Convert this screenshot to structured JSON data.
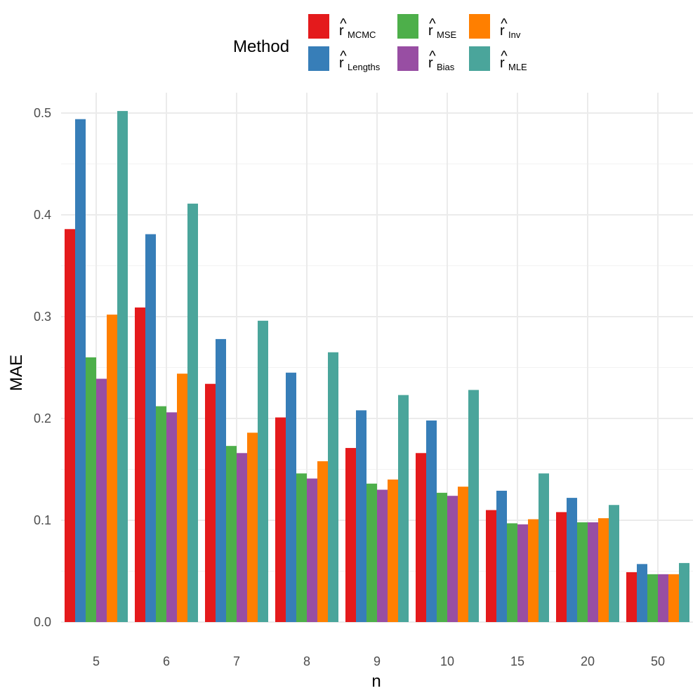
{
  "chart_data": {
    "type": "bar",
    "xlabel": "n",
    "ylabel": "MAE",
    "ylim": [
      0,
      0.52
    ],
    "yticks": [
      0.0,
      0.1,
      0.2,
      0.3,
      0.4,
      0.5
    ],
    "ytick_labels": [
      "0.0",
      "0.1",
      "0.2",
      "0.3",
      "0.4",
      "0.5"
    ],
    "grid": true,
    "legend": {
      "title": "Method",
      "placement": "top",
      "entries": [
        {
          "base": "r",
          "hat": "^",
          "sub": "MCMC"
        },
        {
          "base": "r",
          "hat": "^",
          "sub": "Lengths"
        },
        {
          "base": "r",
          "hat": "^",
          "sub": "MSE"
        },
        {
          "base": "r",
          "hat": "^",
          "sub": "Bias"
        },
        {
          "base": "r",
          "hat": "^",
          "sub": "Inv"
        },
        {
          "base": "r",
          "hat": "^",
          "sub": "MLE"
        }
      ]
    },
    "categories": [
      "5",
      "6",
      "7",
      "8",
      "9",
      "10",
      "15",
      "20",
      "50"
    ],
    "series": [
      {
        "name": "MCMC",
        "color": "#e41a1c",
        "values": [
          0.386,
          0.309,
          0.234,
          0.201,
          0.171,
          0.166,
          0.11,
          0.108,
          0.049
        ]
      },
      {
        "name": "Lengths",
        "color": "#377eb8",
        "values": [
          0.494,
          0.381,
          0.278,
          0.245,
          0.208,
          0.198,
          0.129,
          0.122,
          0.057
        ]
      },
      {
        "name": "MSE",
        "color": "#4daf4a",
        "values": [
          0.26,
          0.212,
          0.173,
          0.146,
          0.136,
          0.127,
          0.097,
          0.098,
          0.047
        ]
      },
      {
        "name": "Bias",
        "color": "#984ea3",
        "values": [
          0.239,
          0.206,
          0.166,
          0.141,
          0.13,
          0.124,
          0.096,
          0.098,
          0.047
        ]
      },
      {
        "name": "Inv",
        "color": "#ff7f00",
        "values": [
          0.302,
          0.244,
          0.186,
          0.158,
          0.14,
          0.133,
          0.101,
          0.102,
          0.047
        ]
      },
      {
        "name": "MLE",
        "color": "#4aa59b",
        "values": [
          0.502,
          0.411,
          0.296,
          0.265,
          0.223,
          0.228,
          0.146,
          0.115,
          0.058
        ]
      }
    ]
  }
}
